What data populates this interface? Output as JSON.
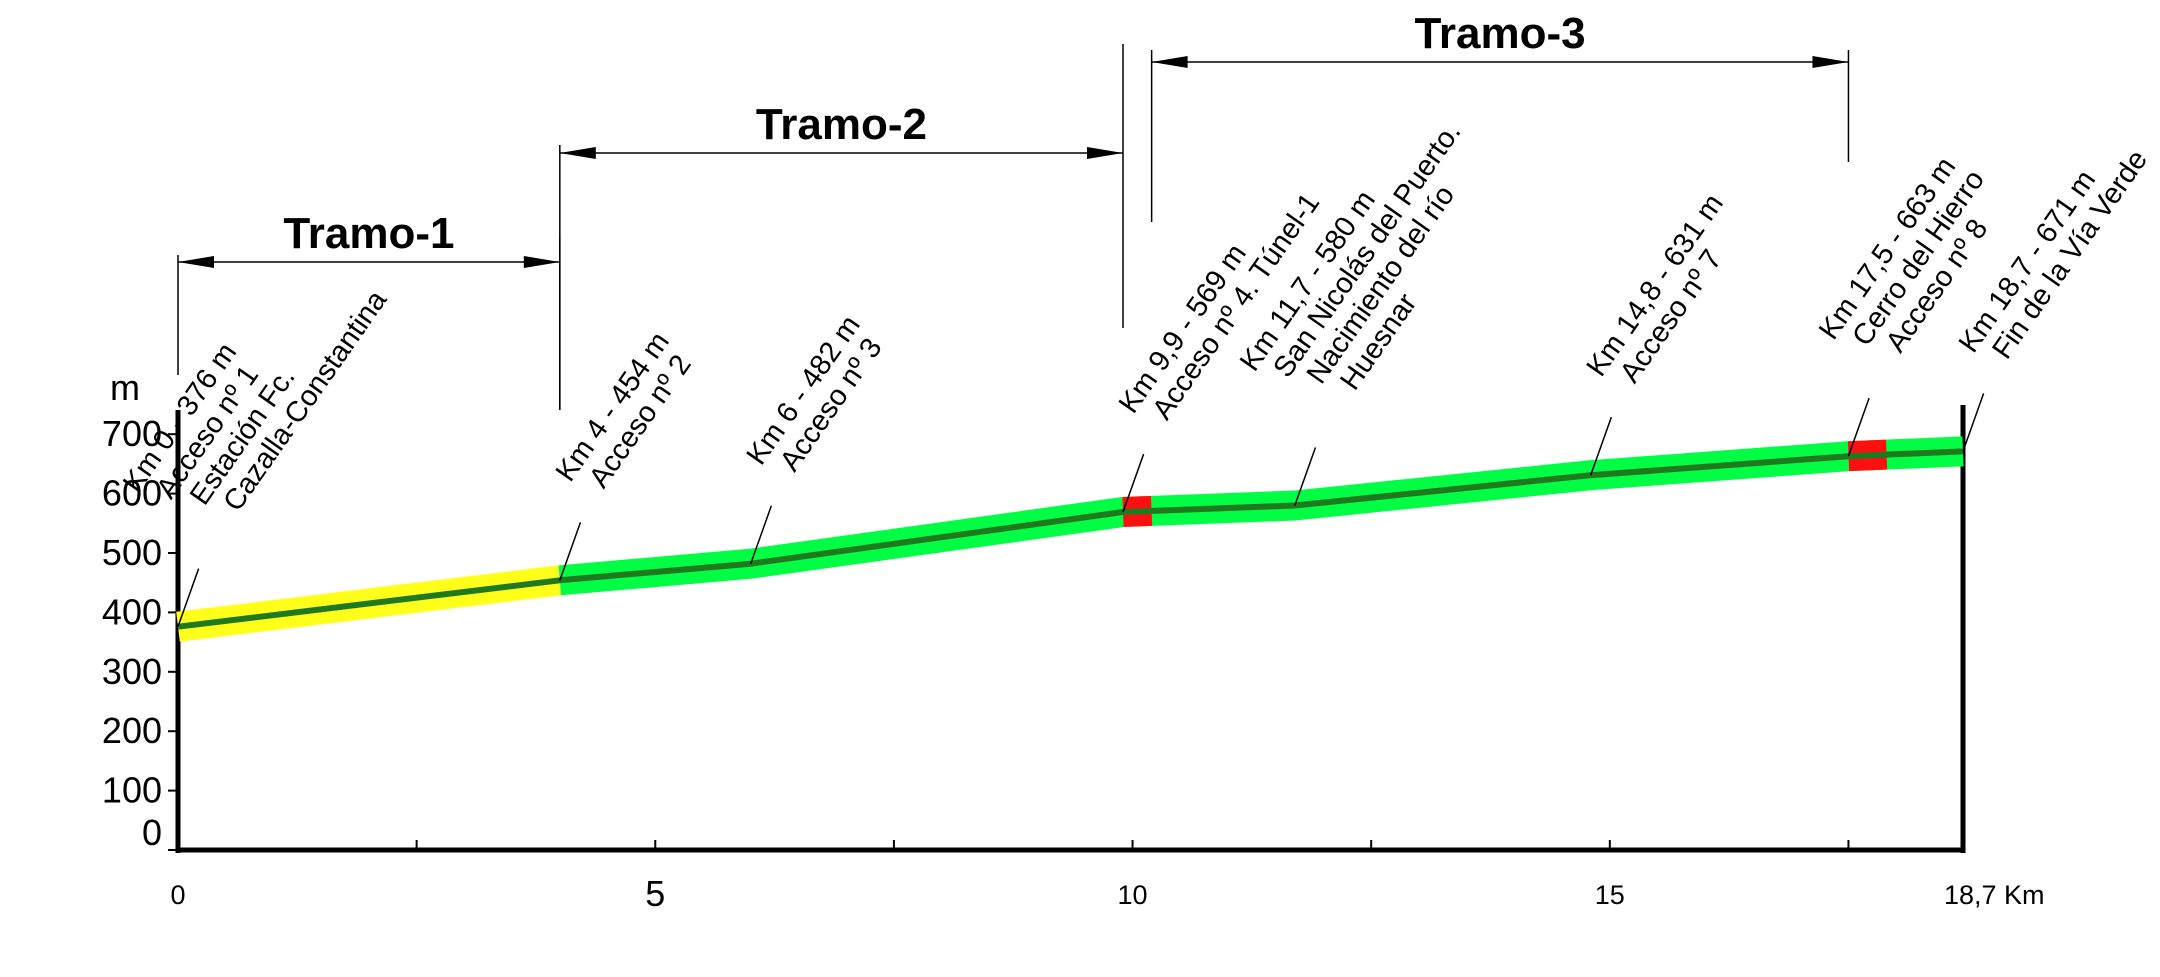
{
  "chart_data": {
    "type": "line",
    "ylabel": "m",
    "y_ticks": [
      "700",
      "600",
      "500",
      "400",
      "300",
      "200",
      "100",
      "0"
    ],
    "x_ticks": [
      "0",
      "5",
      "10",
      "15",
      "18,7 Km"
    ],
    "x_unit": "Km",
    "xlim": [
      0,
      18.7
    ],
    "ylim": [
      0,
      750
    ],
    "x": [
      0,
      4,
      6,
      9.9,
      11.7,
      14.8,
      17.5,
      18.7
    ],
    "y": [
      376,
      454,
      482,
      569,
      580,
      631,
      663,
      671
    ],
    "segments_colors": {
      "tramo_1_band": "#ffff1a",
      "tramo_2_3_band": "#00ff44",
      "tunnel": "#ff1010",
      "profile_line": "#1f7a1f"
    },
    "tunnels": [
      {
        "from_km": 9.9,
        "to_km": 10.2
      },
      {
        "from_km": 17.5,
        "to_km": 17.9
      }
    ],
    "tramos": [
      {
        "label": "Tramo-1",
        "from_km": 0,
        "to_km": 4
      },
      {
        "label": "Tramo-2",
        "from_km": 4,
        "to_km": 9.9
      },
      {
        "label": "Tramo-3",
        "from_km": 10.2,
        "to_km": 17.5
      }
    ],
    "annotations": [
      {
        "km": 0,
        "lines": [
          "Km 0 - 376 m",
          "Acceso nº 1",
          "Estación Fc.",
          "Cazalla-Constantina"
        ]
      },
      {
        "km": 4,
        "lines": [
          "Km 4 - 454 m",
          "Acceso nº 2"
        ]
      },
      {
        "km": 6,
        "lines": [
          "Km 6 - 482 m",
          "Acceso nº 3"
        ]
      },
      {
        "km": 9.9,
        "lines": [
          "Km 9,9 - 569 m",
          "Acceso nº 4. Túnel-1"
        ]
      },
      {
        "km": 11.7,
        "lines": [
          "Km 11,7 - 580 m",
          "San Nicolás del Puerto.",
          "Nacimiento del río",
          "Huesnar"
        ]
      },
      {
        "km": 14.8,
        "lines": [
          "Km 14,8 - 631 m",
          "Acceso nº 7"
        ]
      },
      {
        "km": 17.5,
        "lines": [
          "Km 17,5 - 663 m",
          "Cerro del Hierro",
          "Acceso nº 8"
        ]
      },
      {
        "km": 18.7,
        "lines": [
          "Km 18,7 - 671 m",
          "Fin de la Vía Verde"
        ]
      }
    ]
  }
}
